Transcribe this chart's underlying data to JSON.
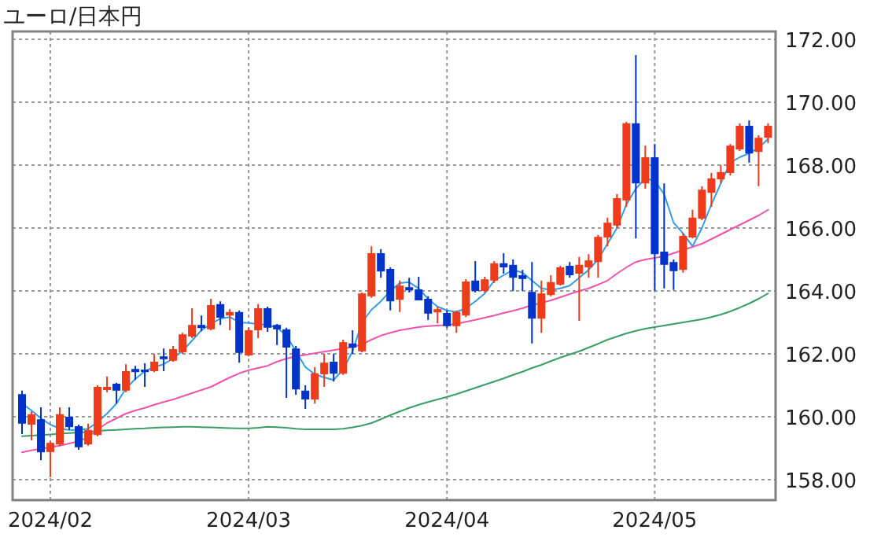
{
  "chart_data": {
    "type": "candlestick",
    "title": "ユーロ/日本円",
    "categories": [
      null,
      null,
      null,
      "2024/02",
      null,
      null,
      null,
      null,
      null,
      null,
      null,
      null,
      null,
      null,
      null,
      null,
      null,
      null,
      null,
      null,
      null,
      null,
      null,
      null,
      "2024/03",
      null,
      null,
      null,
      null,
      null,
      null,
      null,
      null,
      null,
      null,
      null,
      null,
      null,
      null,
      null,
      null,
      null,
      null,
      null,
      null,
      "2024/04",
      null,
      null,
      null,
      null,
      null,
      null,
      null,
      null,
      null,
      null,
      null,
      null,
      null,
      null,
      null,
      null,
      null,
      null,
      null,
      null,
      null,
      "2024/05",
      null,
      null,
      null,
      null,
      null,
      null,
      null,
      null,
      null,
      null,
      null,
      null
    ],
    "ohlc": [
      [
        160.72,
        160.83,
        159.45,
        159.78
      ],
      [
        159.75,
        160.17,
        159.25,
        160.08
      ],
      [
        159.92,
        160.3,
        158.62,
        158.87
      ],
      [
        158.88,
        159.22,
        158.08,
        159.17
      ],
      [
        159.12,
        160.3,
        159.08,
        160.08
      ],
      [
        160.0,
        160.3,
        159.58,
        159.67
      ],
      [
        159.7,
        159.75,
        158.95,
        159.03
      ],
      [
        159.12,
        159.78,
        159.08,
        159.58
      ],
      [
        159.42,
        161.0,
        159.38,
        160.95
      ],
      [
        160.85,
        161.28,
        160.78,
        160.95
      ],
      [
        161.05,
        161.08,
        160.42,
        160.83
      ],
      [
        160.83,
        161.67,
        160.78,
        161.45
      ],
      [
        161.52,
        161.62,
        161.17,
        161.42
      ],
      [
        161.5,
        161.7,
        160.95,
        161.42
      ],
      [
        161.45,
        162.0,
        161.42,
        161.75
      ],
      [
        161.92,
        162.17,
        161.45,
        161.83
      ],
      [
        161.78,
        162.25,
        161.75,
        162.15
      ],
      [
        162.05,
        162.67,
        162.0,
        162.62
      ],
      [
        162.55,
        163.45,
        162.5,
        162.92
      ],
      [
        162.92,
        163.22,
        162.72,
        162.82
      ],
      [
        162.78,
        163.75,
        162.75,
        163.55
      ],
      [
        163.58,
        163.67,
        162.92,
        163.15
      ],
      [
        163.22,
        163.42,
        162.75,
        163.33
      ],
      [
        163.33,
        163.38,
        161.72,
        162.03
      ],
      [
        161.95,
        162.83,
        161.92,
        162.75
      ],
      [
        162.75,
        163.58,
        162.5,
        163.45
      ],
      [
        163.45,
        163.5,
        162.7,
        162.83
      ],
      [
        162.92,
        162.95,
        162.28,
        162.78
      ],
      [
        162.78,
        162.83,
        160.6,
        162.2
      ],
      [
        162.17,
        162.25,
        160.7,
        160.87
      ],
      [
        160.83,
        161.0,
        160.25,
        160.55
      ],
      [
        160.55,
        161.58,
        160.42,
        161.38
      ],
      [
        161.35,
        162.0,
        160.95,
        161.72
      ],
      [
        161.75,
        162.0,
        161.12,
        161.37
      ],
      [
        161.37,
        162.45,
        161.33,
        162.37
      ],
      [
        162.33,
        162.75,
        162.0,
        162.2
      ],
      [
        162.08,
        163.95,
        162.05,
        163.92
      ],
      [
        163.83,
        165.42,
        163.78,
        165.2
      ],
      [
        165.2,
        165.33,
        164.42,
        164.62
      ],
      [
        164.7,
        164.75,
        163.38,
        163.67
      ],
      [
        163.72,
        164.33,
        163.33,
        164.17
      ],
      [
        164.12,
        164.42,
        163.95,
        164.02
      ],
      [
        164.05,
        164.45,
        163.7,
        163.7
      ],
      [
        163.75,
        163.83,
        163.08,
        163.28
      ],
      [
        163.32,
        163.5,
        162.97,
        163.42
      ],
      [
        163.3,
        163.38,
        162.83,
        162.88
      ],
      [
        162.88,
        163.38,
        162.67,
        163.33
      ],
      [
        163.22,
        164.37,
        163.17,
        164.3
      ],
      [
        164.33,
        164.95,
        163.95,
        164.0
      ],
      [
        164.0,
        164.45,
        163.95,
        164.37
      ],
      [
        164.33,
        164.95,
        164.25,
        164.88
      ],
      [
        164.88,
        165.2,
        164.55,
        164.75
      ],
      [
        164.83,
        165.0,
        164.0,
        164.42
      ],
      [
        164.5,
        164.67,
        164.0,
        164.38
      ],
      [
        163.97,
        164.92,
        162.33,
        163.12
      ],
      [
        163.12,
        164.33,
        162.67,
        163.92
      ],
      [
        163.87,
        164.5,
        163.83,
        164.28
      ],
      [
        164.2,
        164.8,
        164.17,
        164.75
      ],
      [
        164.8,
        164.92,
        164.42,
        164.5
      ],
      [
        164.55,
        165.08,
        163.05,
        164.83
      ],
      [
        164.75,
        165.17,
        164.42,
        164.97
      ],
      [
        164.92,
        165.78,
        164.42,
        165.72
      ],
      [
        165.7,
        166.33,
        165.42,
        166.17
      ],
      [
        166.08,
        167.08,
        166.0,
        166.95
      ],
      [
        166.88,
        169.38,
        166.67,
        169.33
      ],
      [
        169.33,
        171.5,
        165.67,
        167.42
      ],
      [
        167.42,
        168.62,
        167.25,
        168.25
      ],
      [
        168.25,
        168.67,
        164.0,
        165.17
      ],
      [
        165.25,
        167.42,
        164.08,
        164.83
      ],
      [
        164.92,
        165.0,
        164.03,
        164.63
      ],
      [
        164.67,
        165.83,
        164.58,
        165.75
      ],
      [
        165.7,
        166.58,
        165.67,
        166.33
      ],
      [
        166.3,
        167.33,
        166.25,
        167.22
      ],
      [
        167.12,
        167.75,
        166.67,
        167.58
      ],
      [
        167.55,
        168.0,
        167.42,
        167.78
      ],
      [
        167.75,
        168.67,
        167.67,
        168.62
      ],
      [
        168.5,
        169.33,
        168.45,
        169.25
      ],
      [
        169.25,
        169.42,
        168.08,
        168.37
      ],
      [
        168.42,
        168.95,
        167.33,
        168.87
      ],
      [
        168.87,
        169.33,
        168.7,
        169.25
      ]
    ],
    "colors": [
      "#0033cc",
      "#ee3b1b",
      "#0033cc",
      "#ee3b1b",
      "#ee3b1b",
      "#0033cc",
      "#0033cc",
      "#ee3b1b",
      "#ee3b1b",
      "#ee3b1b",
      "#0033cc",
      "#ee3b1b",
      "#0033cc",
      "#0033cc",
      "#ee3b1b",
      "#0033cc",
      "#ee3b1b",
      "#ee3b1b",
      "#ee3b1b",
      "#0033cc",
      "#ee3b1b",
      "#0033cc",
      "#ee3b1b",
      "#0033cc",
      "#ee3b1b",
      "#ee3b1b",
      "#0033cc",
      "#0033cc",
      "#0033cc",
      "#0033cc",
      "#0033cc",
      "#ee3b1b",
      "#ee3b1b",
      "#0033cc",
      "#ee3b1b",
      "#0033cc",
      "#ee3b1b",
      "#ee3b1b",
      "#0033cc",
      "#0033cc",
      "#ee3b1b",
      "#0033cc",
      "#0033cc",
      "#0033cc",
      "#ee3b1b",
      "#0033cc",
      "#ee3b1b",
      "#ee3b1b",
      "#0033cc",
      "#ee3b1b",
      "#ee3b1b",
      "#0033cc",
      "#0033cc",
      "#0033cc",
      "#0033cc",
      "#ee3b1b",
      "#ee3b1b",
      "#ee3b1b",
      "#0033cc",
      "#ee3b1b",
      "#ee3b1b",
      "#ee3b1b",
      "#ee3b1b",
      "#ee3b1b",
      "#ee3b1b",
      "#0033cc",
      "#ee3b1b",
      "#0033cc",
      "#0033cc",
      "#0033cc",
      "#ee3b1b",
      "#ee3b1b",
      "#ee3b1b",
      "#ee3b1b",
      "#ee3b1b",
      "#ee3b1b",
      "#ee3b1b",
      "#0033cc",
      "#ee3b1b",
      "#ee3b1b"
    ],
    "series": [
      {
        "type": "line",
        "color": "#2f9de8",
        "values": [
          160.42,
          160.2,
          159.95,
          159.75,
          159.62,
          159.58,
          159.58,
          159.62,
          159.83,
          160.1,
          160.42,
          160.9,
          161.2,
          161.45,
          161.58,
          161.67,
          161.85,
          162.1,
          162.42,
          162.75,
          162.95,
          163.12,
          163.17,
          163.0,
          162.98,
          162.95,
          162.92,
          162.83,
          162.58,
          162.08,
          161.58,
          161.35,
          161.25,
          161.17,
          161.5,
          162.08,
          163.0,
          163.4,
          163.67,
          164.0,
          164.25,
          164.28,
          164.08,
          163.75,
          163.5,
          163.38,
          163.33,
          163.45,
          163.67,
          163.92,
          164.33,
          164.5,
          164.67,
          164.58,
          164.33,
          164.08,
          164.03,
          164.08,
          164.17,
          164.42,
          164.67,
          165.0,
          165.5,
          166.0,
          166.75,
          167.25,
          167.58,
          167.5,
          167.08,
          166.17,
          165.83,
          165.42,
          166.0,
          166.75,
          167.42,
          168.08,
          168.25,
          168.38,
          168.55,
          168.83
        ]
      },
      {
        "type": "line",
        "color": "#ee55aa",
        "values": [
          158.87,
          158.93,
          158.98,
          159.03,
          159.08,
          159.15,
          159.22,
          159.35,
          159.6,
          159.8,
          159.95,
          160.1,
          160.2,
          160.28,
          160.38,
          160.47,
          160.55,
          160.65,
          160.75,
          160.85,
          160.95,
          161.1,
          161.25,
          161.38,
          161.48,
          161.55,
          161.62,
          161.75,
          161.85,
          161.92,
          161.97,
          162.02,
          162.07,
          162.12,
          162.17,
          162.22,
          162.3,
          162.45,
          162.58,
          162.67,
          162.75,
          162.8,
          162.85,
          162.88,
          162.9,
          162.92,
          162.95,
          163.02,
          163.08,
          163.15,
          163.22,
          163.3,
          163.37,
          163.45,
          163.55,
          163.62,
          163.7,
          163.8,
          163.9,
          164.0,
          164.08,
          164.2,
          164.33,
          164.55,
          164.75,
          164.92,
          165.0,
          165.05,
          165.1,
          165.2,
          165.3,
          165.4,
          165.5,
          165.65,
          165.8,
          165.95,
          166.1,
          166.25,
          166.4,
          166.58
        ]
      },
      {
        "type": "line",
        "color": "#3a9e64",
        "values": [
          159.38,
          159.4,
          159.42,
          159.44,
          159.46,
          159.48,
          159.5,
          159.52,
          159.55,
          159.57,
          159.58,
          159.6,
          159.62,
          159.63,
          159.65,
          159.66,
          159.67,
          159.68,
          159.68,
          159.67,
          159.66,
          159.65,
          159.64,
          159.63,
          159.63,
          159.65,
          159.68,
          159.67,
          159.65,
          159.62,
          159.6,
          159.6,
          159.6,
          159.6,
          159.62,
          159.66,
          159.72,
          159.8,
          159.92,
          160.05,
          160.17,
          160.28,
          160.38,
          160.47,
          160.55,
          160.63,
          160.72,
          160.82,
          160.92,
          161.02,
          161.12,
          161.22,
          161.33,
          161.43,
          161.55,
          161.65,
          161.77,
          161.88,
          161.98,
          162.08,
          162.2,
          162.32,
          162.45,
          162.55,
          162.65,
          162.73,
          162.8,
          162.85,
          162.9,
          162.95,
          163.0,
          163.05,
          163.1,
          163.17,
          163.25,
          163.35,
          163.47,
          163.6,
          163.75,
          163.92
        ]
      }
    ],
    "ylim": [
      157.35,
      172.25
    ],
    "yticks": [
      {
        "value": 158,
        "label": "158.00"
      },
      {
        "value": 160,
        "label": "160.00"
      },
      {
        "value": 162,
        "label": "162.00"
      },
      {
        "value": 164,
        "label": "164.00"
      },
      {
        "value": 166,
        "label": "166.00"
      },
      {
        "value": 168,
        "label": "168.00"
      },
      {
        "value": 170,
        "label": "170.00"
      },
      {
        "value": 172,
        "label": "172.00"
      }
    ],
    "grid": true
  }
}
